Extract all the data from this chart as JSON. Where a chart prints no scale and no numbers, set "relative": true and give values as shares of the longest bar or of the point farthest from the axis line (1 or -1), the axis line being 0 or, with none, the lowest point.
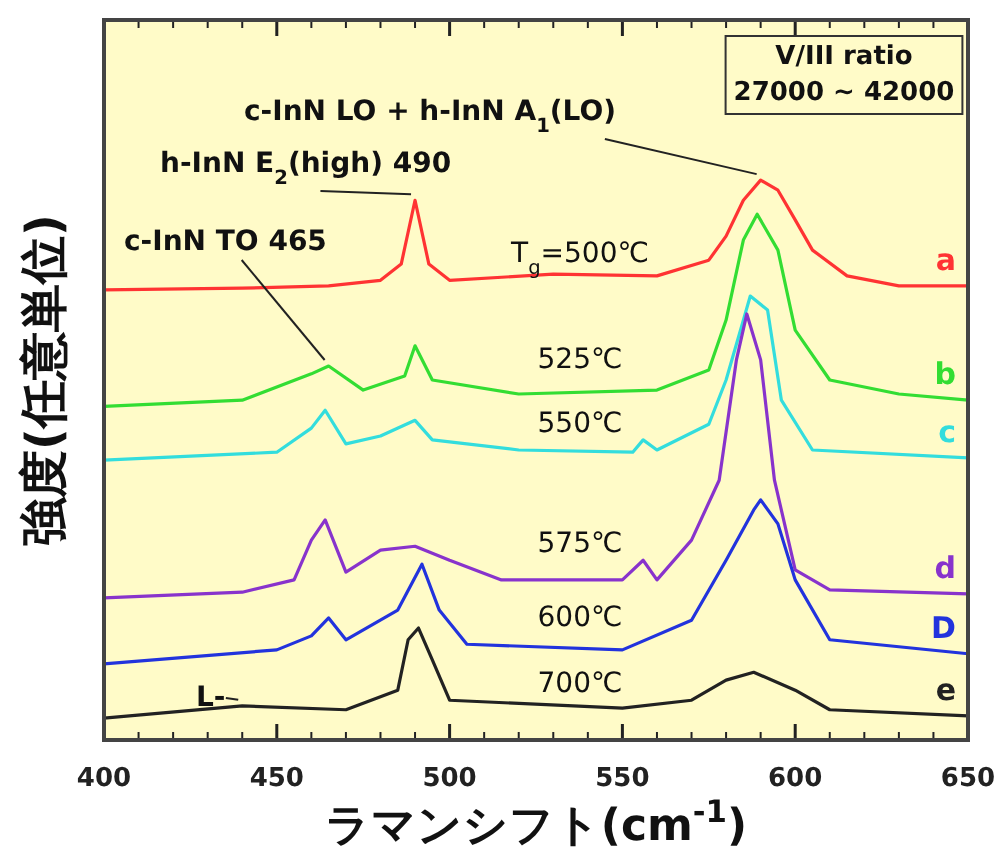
{
  "chart_data": {
    "type": "line",
    "relative": true,
    "xlabel": "ラマンシフト(cm$^{-1}$)",
    "ylabel": "強度(任意単位)",
    "xlim": [
      400,
      650
    ],
    "xticks": [
      400,
      450,
      500,
      550,
      600,
      650
    ],
    "series": [
      {
        "name": "a",
        "color": "#ff3333",
        "x": [
          400,
          440,
          465,
          480,
          486,
          490,
          494,
          500,
          530,
          560,
          575,
          580,
          585,
          590,
          595,
          600,
          605,
          615,
          630,
          650
        ],
        "values": [
          0.804,
          0.807,
          0.811,
          0.821,
          0.85,
          0.964,
          0.85,
          0.821,
          0.832,
          0.829,
          0.857,
          0.9,
          0.964,
          1,
          0.982,
          0.929,
          0.875,
          0.829,
          0.811,
          0.811
        ]
      },
      {
        "name": "b",
        "color": "#33dd33",
        "x": [
          400,
          440,
          460,
          465,
          475,
          487,
          490,
          495,
          520,
          560,
          575,
          580,
          585,
          589,
          595,
          600,
          610,
          630,
          650
        ],
        "values": [
          0.596,
          0.607,
          0.654,
          0.668,
          0.625,
          0.65,
          0.704,
          0.643,
          0.618,
          0.625,
          0.661,
          0.75,
          0.893,
          0.939,
          0.875,
          0.732,
          0.643,
          0.618,
          0.607
        ]
      },
      {
        "name": "c",
        "color": "#33dddd",
        "x": [
          400,
          450,
          460,
          464,
          470,
          480,
          490,
          495,
          520,
          553,
          556,
          560,
          575,
          580,
          585,
          587,
          592,
          596,
          605,
          650
        ],
        "values": [
          0.5,
          0.514,
          0.557,
          0.589,
          0.529,
          0.543,
          0.571,
          0.536,
          0.518,
          0.514,
          0.536,
          0.518,
          0.564,
          0.643,
          0.75,
          0.793,
          0.768,
          0.607,
          0.518,
          0.504
        ]
      },
      {
        "name": "d",
        "color": "#8833cc",
        "x": [
          400,
          440,
          455,
          460,
          464,
          470,
          480,
          490,
          500,
          515,
          550,
          556,
          560,
          570,
          578,
          583,
          586,
          590,
          594,
          600,
          610,
          650
        ],
        "values": [
          0.254,
          0.264,
          0.286,
          0.357,
          0.393,
          0.3,
          0.339,
          0.346,
          0.321,
          0.286,
          0.286,
          0.321,
          0.286,
          0.357,
          0.464,
          0.679,
          0.761,
          0.679,
          0.464,
          0.304,
          0.268,
          0.261
        ]
      },
      {
        "name": "D",
        "color": "#2233dd",
        "x": [
          400,
          450,
          460,
          465,
          470,
          485,
          492,
          497,
          505,
          550,
          570,
          580,
          588,
          590,
          595,
          600,
          610,
          650
        ],
        "values": [
          0.136,
          0.161,
          0.186,
          0.218,
          0.179,
          0.232,
          0.314,
          0.232,
          0.171,
          0.161,
          0.214,
          0.321,
          0.411,
          0.429,
          0.386,
          0.286,
          0.179,
          0.154
        ]
      },
      {
        "name": "e",
        "color": "#222222",
        "x": [
          400,
          440,
          470,
          485,
          488,
          491,
          495,
          500,
          550,
          570,
          580,
          588,
          600,
          610,
          650
        ],
        "values": [
          0.039,
          0.061,
          0.054,
          0.089,
          0.179,
          0.2,
          0.143,
          0.071,
          0.057,
          0.071,
          0.107,
          0.121,
          0.089,
          0.054,
          0.043
        ]
      }
    ],
    "annotations": [
      "T$_{g}$=500℃",
      "525℃",
      "550℃",
      "575℃",
      "600℃",
      "700℃",
      {
        "text": "c-InN TO 465",
        "x": 465,
        "y": 0.668
      },
      {
        "text": "h-InN E$_{2}$(high) 490",
        "x": 490,
        "y": 0.964
      },
      {
        "text": "c-InN LO + h-InN A$_{1}$(LO)",
        "x": 590,
        "y": 1
      },
      {
        "text": "L-",
        "x": 440,
        "y": 0.061
      },
      "V/III ratio 27000 ~ 42000"
    ]
  }
}
